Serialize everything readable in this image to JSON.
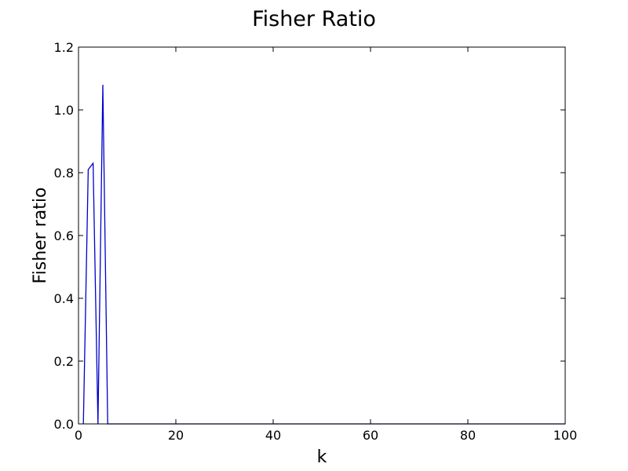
{
  "chart_data": {
    "type": "line",
    "title": "Fisher Ratio",
    "xlabel": "k",
    "ylabel": "Fisher ratio",
    "xlim": [
      0,
      100
    ],
    "ylim": [
      0.0,
      1.2
    ],
    "xticks": [
      "0",
      "20",
      "40",
      "60",
      "80",
      "100"
    ],
    "yticks": [
      "0.0",
      "0.2",
      "0.4",
      "0.6",
      "0.8",
      "1.0",
      "1.2"
    ],
    "grid": false,
    "line_color": "#0000cc",
    "series": [
      {
        "x": [
          1,
          2,
          3,
          4,
          5,
          6,
          7,
          8,
          9,
          10,
          15,
          20,
          30,
          40,
          50,
          60,
          70,
          80,
          90,
          100
        ],
        "values": [
          0.0,
          0.81,
          0.83,
          0.0,
          1.08,
          0.0,
          0.0,
          0.0,
          0.0,
          0.0,
          0.0,
          0.0,
          0.0,
          0.0,
          0.0,
          0.0,
          0.0,
          0.0,
          0.0,
          0.0
        ]
      }
    ]
  }
}
